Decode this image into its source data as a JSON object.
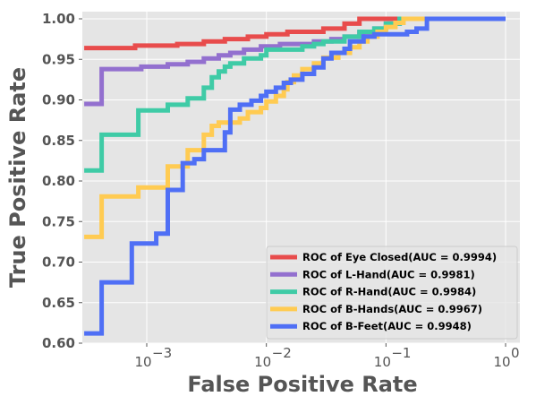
{
  "chart_data": {
    "type": "line",
    "xlabel": "False Positive Rate",
    "ylabel": "True Positive Rate",
    "x_scale": "log",
    "xlim": [
      0.0003,
      1.5
    ],
    "ylim": [
      0.6,
      1.005
    ],
    "x_ticks": [
      {
        "value": 0.001,
        "base": "10",
        "exp": "−3"
      },
      {
        "value": 0.01,
        "base": "10",
        "exp": "−2"
      },
      {
        "value": 0.1,
        "base": "10",
        "exp": "−1"
      },
      {
        "value": 1,
        "base": "10",
        "exp": "0"
      }
    ],
    "y_ticks": [
      "0.60",
      "0.65",
      "0.70",
      "0.75",
      "0.80",
      "0.85",
      "0.90",
      "0.95",
      "1.00"
    ],
    "grid": true,
    "legend_position": "lower-right",
    "series": [
      {
        "name": "ROC of Eye Closed(AUC = 0.9994)",
        "color": "#e84c4c",
        "points": [
          [
            0.0003,
            0.964
          ],
          [
            0.0008,
            0.964
          ],
          [
            0.0008,
            0.967
          ],
          [
            0.0018,
            0.967
          ],
          [
            0.0018,
            0.969
          ],
          [
            0.003,
            0.969
          ],
          [
            0.003,
            0.972
          ],
          [
            0.0045,
            0.972
          ],
          [
            0.0045,
            0.975
          ],
          [
            0.007,
            0.975
          ],
          [
            0.007,
            0.978
          ],
          [
            0.01,
            0.978
          ],
          [
            0.01,
            0.981
          ],
          [
            0.015,
            0.981
          ],
          [
            0.015,
            0.984
          ],
          [
            0.03,
            0.984
          ],
          [
            0.03,
            0.988
          ],
          [
            0.045,
            0.988
          ],
          [
            0.045,
            0.994
          ],
          [
            0.06,
            0.994
          ],
          [
            0.06,
            1.0
          ],
          [
            1.0,
            1.0
          ]
        ]
      },
      {
        "name": "ROC of L-Hand(AUC = 0.9981)",
        "color": "#9370cf",
        "points": [
          [
            0.0003,
            0.895
          ],
          [
            0.00042,
            0.895
          ],
          [
            0.00042,
            0.938
          ],
          [
            0.0009,
            0.938
          ],
          [
            0.0009,
            0.941
          ],
          [
            0.0015,
            0.941
          ],
          [
            0.0015,
            0.944
          ],
          [
            0.0022,
            0.944
          ],
          [
            0.0022,
            0.947
          ],
          [
            0.003,
            0.947
          ],
          [
            0.003,
            0.951
          ],
          [
            0.004,
            0.951
          ],
          [
            0.004,
            0.955
          ],
          [
            0.005,
            0.955
          ],
          [
            0.005,
            0.958
          ],
          [
            0.0065,
            0.958
          ],
          [
            0.0065,
            0.962
          ],
          [
            0.009,
            0.962
          ],
          [
            0.009,
            0.966
          ],
          [
            0.013,
            0.966
          ],
          [
            0.013,
            0.969
          ],
          [
            0.025,
            0.969
          ],
          [
            0.025,
            0.972
          ],
          [
            0.035,
            0.972
          ],
          [
            0.035,
            0.975
          ],
          [
            0.045,
            0.975
          ],
          [
            0.045,
            0.978
          ],
          [
            0.06,
            0.978
          ],
          [
            0.06,
            0.983
          ],
          [
            0.08,
            0.983
          ],
          [
            0.08,
            0.988
          ],
          [
            0.1,
            0.988
          ],
          [
            0.1,
            0.994
          ],
          [
            0.13,
            0.994
          ],
          [
            0.13,
            1.0
          ],
          [
            1.0,
            1.0
          ]
        ]
      },
      {
        "name": "ROC of R-Hand(AUC = 0.9984)",
        "color": "#3fcba6",
        "points": [
          [
            0.0003,
            0.813
          ],
          [
            0.00042,
            0.813
          ],
          [
            0.00042,
            0.857
          ],
          [
            0.00085,
            0.857
          ],
          [
            0.00085,
            0.887
          ],
          [
            0.0015,
            0.887
          ],
          [
            0.0015,
            0.894
          ],
          [
            0.0022,
            0.894
          ],
          [
            0.0022,
            0.902
          ],
          [
            0.003,
            0.902
          ],
          [
            0.003,
            0.915
          ],
          [
            0.0035,
            0.915
          ],
          [
            0.0035,
            0.928
          ],
          [
            0.004,
            0.928
          ],
          [
            0.004,
            0.935
          ],
          [
            0.0045,
            0.935
          ],
          [
            0.0045,
            0.941
          ],
          [
            0.005,
            0.941
          ],
          [
            0.005,
            0.945
          ],
          [
            0.0065,
            0.945
          ],
          [
            0.0065,
            0.951
          ],
          [
            0.009,
            0.951
          ],
          [
            0.009,
            0.955
          ],
          [
            0.01,
            0.955
          ],
          [
            0.01,
            0.962
          ],
          [
            0.02,
            0.962
          ],
          [
            0.02,
            0.966
          ],
          [
            0.025,
            0.966
          ],
          [
            0.025,
            0.969
          ],
          [
            0.03,
            0.969
          ],
          [
            0.03,
            0.972
          ],
          [
            0.045,
            0.972
          ],
          [
            0.045,
            0.978
          ],
          [
            0.06,
            0.978
          ],
          [
            0.06,
            0.984
          ],
          [
            0.08,
            0.984
          ],
          [
            0.08,
            0.988
          ],
          [
            0.1,
            0.988
          ],
          [
            0.1,
            0.994
          ],
          [
            0.13,
            0.994
          ],
          [
            0.13,
            1.0
          ],
          [
            1.0,
            1.0
          ]
        ]
      },
      {
        "name": "ROC of B-Hands(AUC = 0.9967)",
        "color": "#ffcb52",
        "points": [
          [
            0.0003,
            0.731
          ],
          [
            0.00042,
            0.731
          ],
          [
            0.00042,
            0.781
          ],
          [
            0.00085,
            0.781
          ],
          [
            0.00085,
            0.792
          ],
          [
            0.0015,
            0.792
          ],
          [
            0.0015,
            0.818
          ],
          [
            0.0022,
            0.818
          ],
          [
            0.0022,
            0.838
          ],
          [
            0.003,
            0.838
          ],
          [
            0.003,
            0.857
          ],
          [
            0.0035,
            0.857
          ],
          [
            0.0035,
            0.868
          ],
          [
            0.004,
            0.868
          ],
          [
            0.004,
            0.872
          ],
          [
            0.006,
            0.872
          ],
          [
            0.006,
            0.877
          ],
          [
            0.007,
            0.877
          ],
          [
            0.007,
            0.885
          ],
          [
            0.009,
            0.885
          ],
          [
            0.009,
            0.89
          ],
          [
            0.01,
            0.89
          ],
          [
            0.01,
            0.898
          ],
          [
            0.012,
            0.898
          ],
          [
            0.012,
            0.905
          ],
          [
            0.014,
            0.905
          ],
          [
            0.014,
            0.913
          ],
          [
            0.015,
            0.913
          ],
          [
            0.015,
            0.922
          ],
          [
            0.017,
            0.922
          ],
          [
            0.017,
            0.93
          ],
          [
            0.02,
            0.93
          ],
          [
            0.02,
            0.938
          ],
          [
            0.025,
            0.938
          ],
          [
            0.025,
            0.945
          ],
          [
            0.03,
            0.945
          ],
          [
            0.03,
            0.952
          ],
          [
            0.04,
            0.952
          ],
          [
            0.04,
            0.958
          ],
          [
            0.05,
            0.958
          ],
          [
            0.05,
            0.965
          ],
          [
            0.06,
            0.965
          ],
          [
            0.06,
            0.972
          ],
          [
            0.07,
            0.972
          ],
          [
            0.07,
            0.978
          ],
          [
            0.085,
            0.978
          ],
          [
            0.085,
            0.984
          ],
          [
            0.1,
            0.984
          ],
          [
            0.1,
            0.99
          ],
          [
            0.12,
            0.99
          ],
          [
            0.12,
            0.995
          ],
          [
            0.14,
            0.995
          ],
          [
            0.14,
            1.0
          ],
          [
            1.0,
            1.0
          ]
        ]
      },
      {
        "name": "ROC of B-Feet(AUC = 0.9948)",
        "color": "#4f6ff5",
        "points": [
          [
            0.0003,
            0.612
          ],
          [
            0.00042,
            0.612
          ],
          [
            0.00042,
            0.675
          ],
          [
            0.00075,
            0.675
          ],
          [
            0.00075,
            0.723
          ],
          [
            0.0012,
            0.723
          ],
          [
            0.0012,
            0.735
          ],
          [
            0.0015,
            0.735
          ],
          [
            0.0015,
            0.789
          ],
          [
            0.002,
            0.789
          ],
          [
            0.002,
            0.822
          ],
          [
            0.0025,
            0.822
          ],
          [
            0.0025,
            0.827
          ],
          [
            0.003,
            0.827
          ],
          [
            0.003,
            0.838
          ],
          [
            0.0045,
            0.838
          ],
          [
            0.0045,
            0.86
          ],
          [
            0.005,
            0.86
          ],
          [
            0.005,
            0.888
          ],
          [
            0.006,
            0.888
          ],
          [
            0.006,
            0.894
          ],
          [
            0.0075,
            0.894
          ],
          [
            0.0075,
            0.899
          ],
          [
            0.009,
            0.899
          ],
          [
            0.009,
            0.905
          ],
          [
            0.01,
            0.905
          ],
          [
            0.01,
            0.91
          ],
          [
            0.012,
            0.91
          ],
          [
            0.012,
            0.915
          ],
          [
            0.014,
            0.915
          ],
          [
            0.014,
            0.921
          ],
          [
            0.016,
            0.921
          ],
          [
            0.016,
            0.925
          ],
          [
            0.02,
            0.925
          ],
          [
            0.02,
            0.932
          ],
          [
            0.025,
            0.932
          ],
          [
            0.025,
            0.94
          ],
          [
            0.03,
            0.94
          ],
          [
            0.03,
            0.951
          ],
          [
            0.035,
            0.951
          ],
          [
            0.035,
            0.958
          ],
          [
            0.045,
            0.958
          ],
          [
            0.045,
            0.963
          ],
          [
            0.05,
            0.963
          ],
          [
            0.05,
            0.972
          ],
          [
            0.065,
            0.972
          ],
          [
            0.065,
            0.978
          ],
          [
            0.08,
            0.978
          ],
          [
            0.08,
            0.981
          ],
          [
            0.15,
            0.981
          ],
          [
            0.15,
            0.984
          ],
          [
            0.18,
            0.984
          ],
          [
            0.18,
            0.988
          ],
          [
            0.22,
            0.988
          ],
          [
            0.22,
            1.0
          ],
          [
            1.0,
            1.0
          ]
        ]
      }
    ]
  }
}
